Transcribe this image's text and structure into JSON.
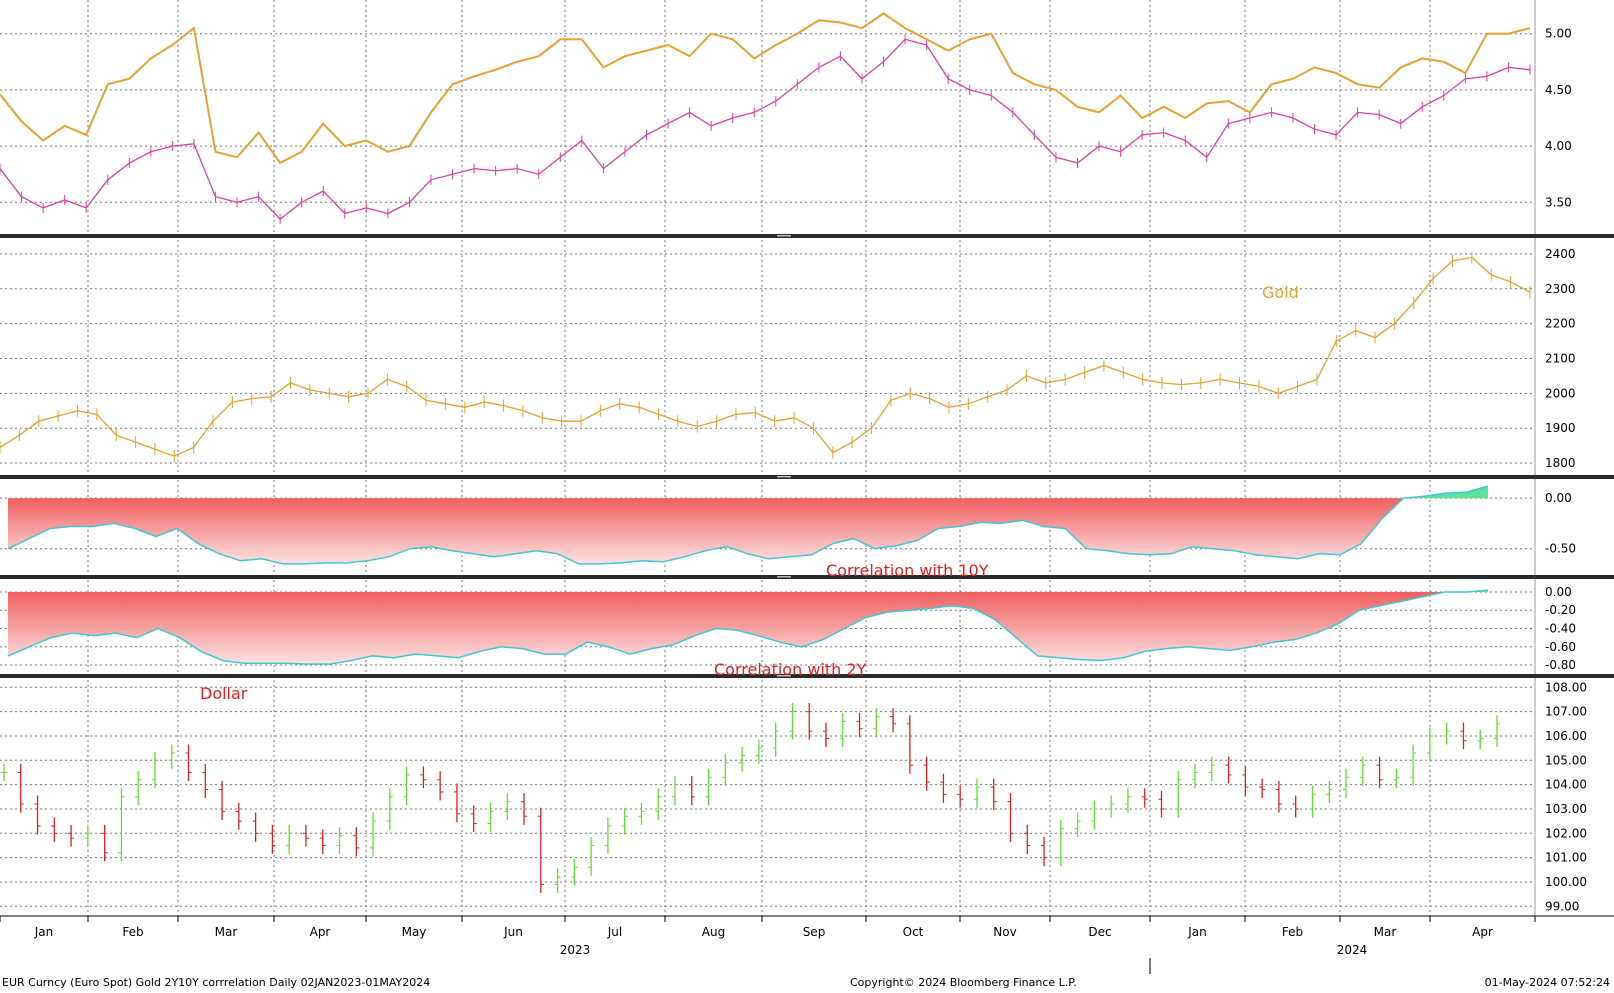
{
  "footer": {
    "left": "EUR Curncy (Euro Spot) Gold 2Y10Y corrrelation  Daily 02JAN2023-01MAY2024",
    "center": "Copyright© 2024 Bloomberg Finance L.P.",
    "right": "01-May-2024 07:52:24"
  },
  "x_axis": {
    "months": [
      "Jan",
      "Feb",
      "Mar",
      "Apr",
      "May",
      "Jun",
      "Jul",
      "Aug",
      "Sep",
      "Oct",
      "Nov",
      "Dec",
      "Jan",
      "Feb",
      "Mar",
      "Apr"
    ],
    "years": [
      "2023",
      "2024"
    ]
  },
  "colors": {
    "yield_10y": "#e8a030",
    "yield_2y": "#e040a0",
    "gold": "#e8a030",
    "corr_neg_fill": "#f06060",
    "corr_pos_fill": "#60e0a0",
    "corr_line": "#40c8d0",
    "dollar_up": "#66dd33",
    "dollar_down": "#e02020",
    "label_red": "#e02020"
  },
  "chart_data": [
    {
      "type": "line",
      "panel": "yields",
      "yticks": [
        "5.00",
        "4.50",
        "4.00",
        "3.50"
      ],
      "ylim": [
        3.2,
        5.3
      ],
      "series": [
        {
          "values": [
            4.46,
            4.22,
            4.05,
            4.18,
            4.1,
            4.55,
            4.6,
            4.78,
            4.9,
            5.05,
            3.95,
            3.9,
            4.12,
            3.85,
            3.95,
            4.2,
            4.0,
            4.05,
            3.95,
            4.0,
            4.3,
            4.55,
            4.62,
            4.68,
            4.75,
            4.8,
            4.95,
            4.95,
            4.7,
            4.8,
            4.85,
            4.9,
            4.8,
            5.0,
            4.95,
            4.78,
            4.9,
            5.0,
            5.12,
            5.1,
            5.05,
            5.18,
            5.05,
            4.95,
            4.85,
            4.95,
            5.0,
            4.65,
            4.55,
            4.5,
            4.35,
            4.3,
            4.45,
            4.25,
            4.35,
            4.25,
            4.38,
            4.4,
            4.3,
            4.55,
            4.6,
            4.7,
            4.65,
            4.55,
            4.52,
            4.7,
            4.78,
            4.75,
            4.65,
            5.0,
            5.0,
            5.05
          ]
        },
        {
          "values": [
            3.8,
            3.55,
            3.45,
            3.52,
            3.45,
            3.7,
            3.85,
            3.95,
            4.0,
            4.02,
            3.55,
            3.5,
            3.55,
            3.35,
            3.5,
            3.6,
            3.4,
            3.45,
            3.4,
            3.5,
            3.7,
            3.75,
            3.8,
            3.78,
            3.8,
            3.75,
            3.9,
            4.05,
            3.8,
            3.95,
            4.1,
            4.2,
            4.3,
            4.18,
            4.25,
            4.3,
            4.4,
            4.55,
            4.7,
            4.8,
            4.6,
            4.75,
            4.95,
            4.9,
            4.6,
            4.5,
            4.45,
            4.3,
            4.1,
            3.9,
            3.85,
            4.0,
            3.95,
            4.1,
            4.12,
            4.05,
            3.9,
            4.2,
            4.25,
            4.3,
            4.25,
            4.15,
            4.1,
            4.3,
            4.28,
            4.2,
            4.35,
            4.45,
            4.6,
            4.62,
            4.7,
            4.68
          ]
        }
      ]
    },
    {
      "type": "line",
      "panel": "gold",
      "title": "Gold",
      "yticks": [
        "2400",
        "2300",
        "2200",
        "2100",
        "2000",
        "1900",
        "1800"
      ],
      "ylim": [
        1760,
        2440
      ],
      "series": [
        {
          "name": "Gold",
          "values": [
            1845,
            1880,
            1920,
            1935,
            1950,
            1940,
            1880,
            1860,
            1840,
            1820,
            1845,
            1920,
            1975,
            1985,
            1990,
            2030,
            2010,
            2000,
            1990,
            2000,
            2040,
            2020,
            1980,
            1970,
            1960,
            1975,
            1965,
            1950,
            1930,
            1920,
            1920,
            1950,
            1970,
            1960,
            1940,
            1920,
            1905,
            1920,
            1940,
            1945,
            1920,
            1930,
            1900,
            1830,
            1860,
            1900,
            1980,
            2000,
            1985,
            1960,
            1970,
            1990,
            2010,
            2050,
            2030,
            2040,
            2060,
            2080,
            2060,
            2040,
            2030,
            2025,
            2030,
            2040,
            2030,
            2020,
            2000,
            2020,
            2040,
            2150,
            2180,
            2160,
            2200,
            2260,
            2330,
            2380,
            2390,
            2340,
            2320,
            2290
          ]
        }
      ]
    },
    {
      "type": "area",
      "panel": "corr10",
      "title": "Correlation with 10Y",
      "yticks": [
        "0.00",
        "-0.50"
      ],
      "ylim": [
        -0.78,
        0.17
      ],
      "series": [
        {
          "name": "Correlation with 10Y",
          "values": [
            -0.5,
            -0.4,
            -0.3,
            -0.28,
            -0.28,
            -0.25,
            -0.3,
            -0.38,
            -0.3,
            -0.45,
            -0.55,
            -0.62,
            -0.6,
            -0.65,
            -0.65,
            -0.64,
            -0.64,
            -0.62,
            -0.58,
            -0.5,
            -0.48,
            -0.52,
            -0.55,
            -0.58,
            -0.55,
            -0.52,
            -0.55,
            -0.65,
            -0.65,
            -0.64,
            -0.62,
            -0.63,
            -0.58,
            -0.52,
            -0.48,
            -0.55,
            -0.6,
            -0.58,
            -0.56,
            -0.45,
            -0.4,
            -0.5,
            -0.47,
            -0.42,
            -0.3,
            -0.28,
            -0.24,
            -0.25,
            -0.22,
            -0.28,
            -0.3,
            -0.5,
            -0.52,
            -0.55,
            -0.56,
            -0.55,
            -0.48,
            -0.5,
            -0.52,
            -0.56,
            -0.58,
            -0.6,
            -0.55,
            -0.56,
            -0.45,
            -0.2,
            0.0,
            0.02,
            0.05,
            0.06,
            0.12
          ]
        }
      ]
    },
    {
      "type": "area",
      "panel": "corr2",
      "title": "Correlation with 2Y",
      "yticks": [
        "0.00",
        "-0.20",
        "-0.40",
        "-0.60",
        "-0.80"
      ],
      "ylim": [
        -0.92,
        0.12
      ],
      "series": [
        {
          "name": "Correlation with 2Y",
          "values": [
            -0.7,
            -0.6,
            -0.5,
            -0.45,
            -0.48,
            -0.45,
            -0.5,
            -0.4,
            -0.5,
            -0.65,
            -0.75,
            -0.78,
            -0.78,
            -0.78,
            -0.79,
            -0.79,
            -0.75,
            -0.7,
            -0.72,
            -0.68,
            -0.7,
            -0.72,
            -0.65,
            -0.6,
            -0.62,
            -0.68,
            -0.68,
            -0.55,
            -0.6,
            -0.68,
            -0.62,
            -0.58,
            -0.48,
            -0.4,
            -0.42,
            -0.48,
            -0.55,
            -0.6,
            -0.52,
            -0.4,
            -0.28,
            -0.22,
            -0.2,
            -0.18,
            -0.15,
            -0.18,
            -0.3,
            -0.5,
            -0.7,
            -0.72,
            -0.74,
            -0.75,
            -0.72,
            -0.65,
            -0.62,
            -0.6,
            -0.62,
            -0.64,
            -0.6,
            -0.55,
            -0.52,
            -0.45,
            -0.35,
            -0.2,
            -0.15,
            -0.1,
            -0.05,
            0.0,
            0.0,
            0.02
          ]
        }
      ]
    },
    {
      "type": "bar",
      "panel": "dollar",
      "title": "Dollar",
      "yticks": [
        "108.00",
        "107.00",
        "106.00",
        "105.00",
        "104.00",
        "103.00",
        "102.00",
        "101.00",
        "100.00",
        "99.00"
      ],
      "ylim": [
        98.6,
        108.3
      ],
      "series": [
        {
          "name": "Dollar",
          "values": [
            104.5,
            103.2,
            102.3,
            102.0,
            101.8,
            102.0,
            101.2,
            103.5,
            104.2,
            105.0,
            105.3,
            104.5,
            103.8,
            102.9,
            102.5,
            102.0,
            101.5,
            102.0,
            101.8,
            101.5,
            101.9,
            101.4,
            102.5,
            103.5,
            104.4,
            104.2,
            103.7,
            102.8,
            102.4,
            102.9,
            103.3,
            102.7,
            99.9,
            100.2,
            100.6,
            101.5,
            102.3,
            102.7,
            102.9,
            103.5,
            104.0,
            103.5,
            104.3,
            104.9,
            105.2,
            105.5,
            106.2,
            107.0,
            106.2,
            105.9,
            106.6,
            106.3,
            106.8,
            106.5,
            104.8,
            104.1,
            103.6,
            103.4,
            103.9,
            103.3,
            102.0,
            101.5,
            101.0,
            102.2,
            102.5,
            103.0,
            103.2,
            103.5,
            103.4,
            103.0,
            104.2,
            104.5,
            104.8,
            104.4,
            103.9,
            103.8,
            103.2,
            103.0,
            103.6,
            103.8,
            104.3,
            104.8,
            104.2,
            104.3,
            105.3,
            106.0,
            106.2,
            105.8,
            105.9,
            106.5
          ]
        }
      ]
    }
  ]
}
